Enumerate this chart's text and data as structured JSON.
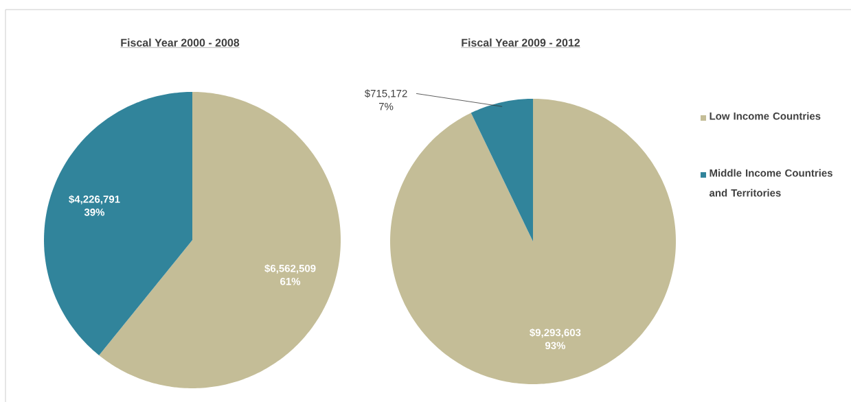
{
  "chart_data": [
    {
      "type": "pie",
      "title": "Fiscal Year 2000 - 2008",
      "categories": [
        null,
        null
      ],
      "values": [
        6562509,
        4226791
      ],
      "colors": [
        "#c4bd97",
        "#31849b"
      ],
      "value_labels": [
        "$6,562,509 61%",
        "$4,226,791 39%"
      ]
    },
    {
      "type": "pie",
      "title": "Fiscal Year 2009 - 2012",
      "categories": [
        "Low Income Countries",
        "Middle Income Countries and Territories"
      ],
      "values": [
        9293603,
        715172
      ],
      "colors": [
        "#c4bd97",
        "#31849b"
      ],
      "value_labels": [
        "$9,293,603 93%",
        "$715,172 7%"
      ],
      "legend": "right"
    }
  ]
}
